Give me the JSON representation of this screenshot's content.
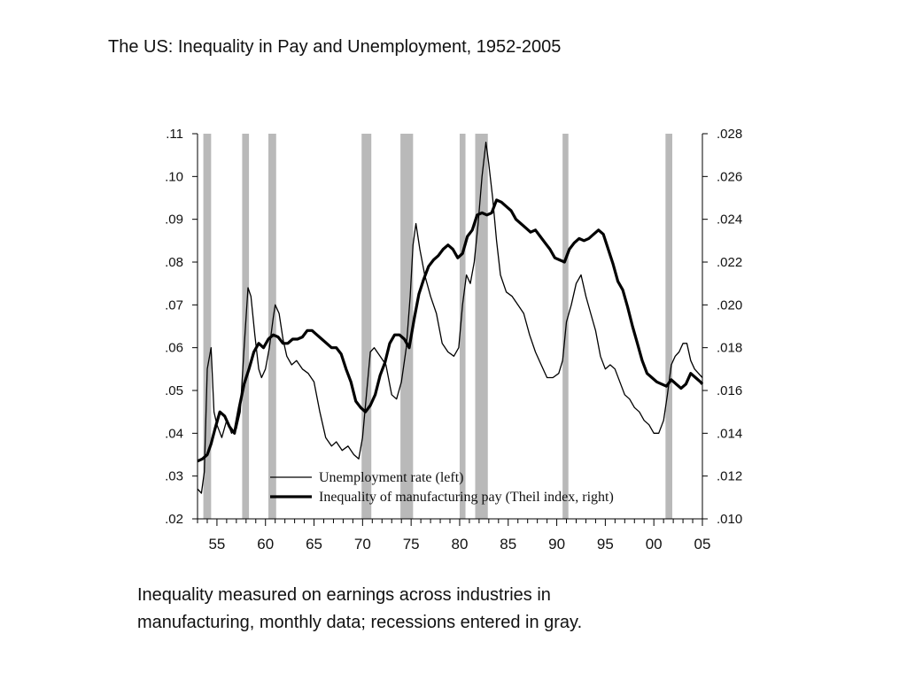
{
  "page": {
    "title": "The US:  Inequality in Pay and Unemployment, 1952-2005",
    "caption_line1": "Inequality measured on earnings across industries in",
    "caption_line2": "manufacturing, monthly data; recessions entered in gray."
  },
  "chart_data": {
    "type": "line",
    "x_range": [
      1953.0,
      2005.0
    ],
    "x_tick_values": [
      1955,
      1960,
      1965,
      1970,
      1975,
      1980,
      1985,
      1990,
      1995,
      2000,
      2005
    ],
    "x_tick_labels": [
      "55",
      "60",
      "65",
      "70",
      "75",
      "80",
      "85",
      "90",
      "95",
      "00",
      "05"
    ],
    "left_axis": {
      "range": [
        0.02,
        0.11
      ],
      "tick_values": [
        0.02,
        0.03,
        0.04,
        0.05,
        0.06,
        0.07,
        0.08,
        0.09,
        0.1,
        0.11
      ],
      "tick_labels": [
        ".02",
        ".03",
        ".04",
        ".05",
        ".06",
        ".07",
        ".08",
        ".09",
        ".10",
        ".11"
      ]
    },
    "right_axis": {
      "range": [
        0.01,
        0.028
      ],
      "tick_values": [
        0.01,
        0.012,
        0.014,
        0.016,
        0.018,
        0.02,
        0.022,
        0.024,
        0.026,
        0.028
      ],
      "tick_labels": [
        ".010",
        ".012",
        ".014",
        ".016",
        ".018",
        ".020",
        ".022",
        ".024",
        ".026",
        ".028"
      ]
    },
    "grid": false,
    "legend_position": "bottom-center",
    "recessions": [
      [
        1953.6,
        1954.4
      ],
      [
        1957.6,
        1958.3
      ],
      [
        1960.3,
        1961.1
      ],
      [
        1969.9,
        1970.9
      ],
      [
        1973.9,
        1975.2
      ],
      [
        1980.0,
        1980.6
      ],
      [
        1981.6,
        1982.9
      ],
      [
        1990.6,
        1991.2
      ],
      [
        2001.2,
        2001.9
      ]
    ],
    "colors": {
      "recession": "#b9b9b9",
      "line": "#000000"
    },
    "series": [
      {
        "name": "Unemployment rate (left)",
        "axis": "left",
        "stroke": "thin",
        "x": [
          1953.0,
          1953.4,
          1953.7,
          1954.0,
          1954.4,
          1954.7,
          1955.0,
          1955.5,
          1956.0,
          1956.5,
          1957.0,
          1957.4,
          1957.8,
          1958.2,
          1958.5,
          1958.9,
          1959.3,
          1959.6,
          1960.0,
          1960.4,
          1960.8,
          1961.0,
          1961.4,
          1961.8,
          1962.2,
          1962.7,
          1963.2,
          1963.8,
          1964.4,
          1965.0,
          1965.6,
          1966.2,
          1966.8,
          1967.3,
          1967.9,
          1968.5,
          1969.1,
          1969.6,
          1970.0,
          1970.4,
          1970.8,
          1971.2,
          1971.8,
          1972.4,
          1973.0,
          1973.5,
          1974.0,
          1974.5,
          1974.9,
          1975.2,
          1975.5,
          1975.9,
          1976.4,
          1977.0,
          1977.6,
          1978.2,
          1978.8,
          1979.4,
          1979.9,
          1980.3,
          1980.7,
          1981.1,
          1981.5,
          1981.9,
          1982.3,
          1982.7,
          1983.0,
          1983.4,
          1983.8,
          1984.2,
          1984.8,
          1985.4,
          1986.0,
          1986.6,
          1987.2,
          1987.8,
          1988.4,
          1989.0,
          1989.6,
          1990.2,
          1990.6,
          1991.0,
          1991.5,
          1992.0,
          1992.5,
          1993.0,
          1993.5,
          1994.0,
          1994.5,
          1995.0,
          1995.5,
          1996.0,
          1996.5,
          1997.0,
          1997.5,
          1998.0,
          1998.5,
          1999.0,
          1999.5,
          2000.0,
          2000.5,
          2001.0,
          2001.4,
          2001.8,
          2002.2,
          2002.6,
          2003.0,
          2003.4,
          2003.8,
          2004.2,
          2004.6,
          2005.0
        ],
        "values": [
          0.027,
          0.026,
          0.031,
          0.055,
          0.06,
          0.045,
          0.042,
          0.039,
          0.043,
          0.04,
          0.041,
          0.045,
          0.06,
          0.074,
          0.072,
          0.063,
          0.055,
          0.053,
          0.055,
          0.06,
          0.067,
          0.07,
          0.068,
          0.062,
          0.058,
          0.056,
          0.057,
          0.055,
          0.054,
          0.052,
          0.045,
          0.039,
          0.037,
          0.038,
          0.036,
          0.037,
          0.035,
          0.034,
          0.039,
          0.049,
          0.059,
          0.06,
          0.058,
          0.056,
          0.049,
          0.048,
          0.052,
          0.06,
          0.072,
          0.084,
          0.089,
          0.083,
          0.077,
          0.072,
          0.068,
          0.061,
          0.059,
          0.058,
          0.06,
          0.07,
          0.077,
          0.075,
          0.08,
          0.089,
          0.1,
          0.108,
          0.103,
          0.095,
          0.085,
          0.077,
          0.073,
          0.072,
          0.07,
          0.068,
          0.063,
          0.059,
          0.056,
          0.053,
          0.053,
          0.054,
          0.057,
          0.066,
          0.07,
          0.075,
          0.077,
          0.072,
          0.068,
          0.064,
          0.058,
          0.055,
          0.056,
          0.055,
          0.052,
          0.049,
          0.048,
          0.046,
          0.045,
          0.043,
          0.042,
          0.04,
          0.04,
          0.043,
          0.049,
          0.056,
          0.058,
          0.059,
          0.061,
          0.061,
          0.057,
          0.055,
          0.054,
          0.053
        ]
      },
      {
        "name": "Inequality of manufacturing pay (Theil index, right)",
        "axis": "right",
        "stroke": "thick",
        "x": [
          1953.0,
          1953.5,
          1954.0,
          1954.4,
          1954.8,
          1955.3,
          1955.8,
          1956.3,
          1956.8,
          1957.3,
          1957.8,
          1958.3,
          1958.8,
          1959.3,
          1959.8,
          1960.3,
          1960.8,
          1961.3,
          1961.8,
          1962.3,
          1962.8,
          1963.3,
          1963.8,
          1964.3,
          1964.8,
          1965.3,
          1965.8,
          1966.3,
          1966.8,
          1967.3,
          1967.8,
          1968.3,
          1968.8,
          1969.3,
          1969.8,
          1970.3,
          1970.8,
          1971.3,
          1971.8,
          1972.3,
          1972.8,
          1973.3,
          1973.8,
          1974.3,
          1974.8,
          1975.3,
          1975.8,
          1976.3,
          1976.8,
          1977.3,
          1977.8,
          1978.3,
          1978.8,
          1979.3,
          1979.8,
          1980.3,
          1980.8,
          1981.3,
          1981.8,
          1982.3,
          1982.8,
          1983.3,
          1983.8,
          1984.3,
          1984.8,
          1985.3,
          1985.8,
          1986.3,
          1986.8,
          1987.3,
          1987.8,
          1988.3,
          1988.8,
          1989.3,
          1989.8,
          1990.3,
          1990.8,
          1991.3,
          1991.8,
          1992.3,
          1992.8,
          1993.3,
          1993.8,
          1994.3,
          1994.8,
          1995.3,
          1995.8,
          1996.3,
          1996.8,
          1997.3,
          1997.8,
          1998.3,
          1998.8,
          1999.3,
          1999.8,
          2000.3,
          2000.8,
          2001.3,
          2001.8,
          2002.3,
          2002.8,
          2003.3,
          2003.8,
          2004.3,
          2004.8,
          2005.0
        ],
        "values": [
          0.0127,
          0.0128,
          0.013,
          0.0135,
          0.0142,
          0.015,
          0.0148,
          0.0143,
          0.014,
          0.0152,
          0.0163,
          0.017,
          0.0178,
          0.0182,
          0.018,
          0.0184,
          0.0186,
          0.0185,
          0.0182,
          0.0182,
          0.0184,
          0.0184,
          0.0185,
          0.0188,
          0.0188,
          0.0186,
          0.0184,
          0.0182,
          0.018,
          0.018,
          0.0177,
          0.017,
          0.0164,
          0.0155,
          0.0152,
          0.015,
          0.0153,
          0.0158,
          0.0167,
          0.0173,
          0.0182,
          0.0186,
          0.0186,
          0.0184,
          0.018,
          0.0193,
          0.0205,
          0.0212,
          0.0218,
          0.0221,
          0.0223,
          0.0226,
          0.0228,
          0.0226,
          0.0222,
          0.0224,
          0.0232,
          0.0235,
          0.0242,
          0.0243,
          0.0242,
          0.0243,
          0.0249,
          0.0248,
          0.0246,
          0.0244,
          0.024,
          0.0238,
          0.0236,
          0.0234,
          0.0235,
          0.0232,
          0.0229,
          0.0226,
          0.0222,
          0.0221,
          0.022,
          0.0226,
          0.0229,
          0.0231,
          0.023,
          0.0231,
          0.0233,
          0.0235,
          0.0233,
          0.0226,
          0.0219,
          0.0211,
          0.0207,
          0.0199,
          0.019,
          0.0182,
          0.0174,
          0.0168,
          0.0166,
          0.0164,
          0.0163,
          0.0162,
          0.0165,
          0.0163,
          0.0161,
          0.0163,
          0.0168,
          0.0166,
          0.0164,
          0.0163
        ]
      }
    ]
  }
}
